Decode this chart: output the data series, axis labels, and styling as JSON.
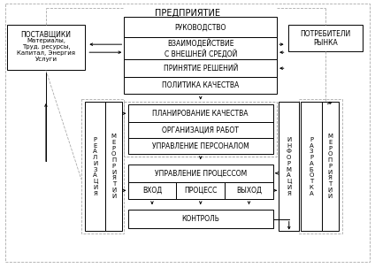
{
  "bg_color": "#ffffff",
  "title": "ПРЕДПРИЯТИЕ",
  "supplier_title": "ПОСТАВЩИКИ",
  "supplier_text": "Материалы,\nТруд. ресурсы,\nКапитал, Энергия\nУслуги",
  "consumer_text": "ПОТРЕБИТЕЛИ\nРЫНКА",
  "box1": "РУКОВОДСТВО",
  "box2": "ВЗАИМОДЕЙСТВИЕ\nС ВНЕШНЕЙ СРЕДОЙ",
  "box3": "ПРИНЯТИЕ РЕШЕНИЙ",
  "box4": "ПОЛИТИКА КАЧЕСТВА",
  "box5": "ПЛАНИРОВАНИЕ КАЧЕСТВА",
  "box6": "ОРГАНИЗАЦИЯ РАБОТ",
  "box7": "УПРАВЛЕНИЕ ПЕРСОНАЛОМ",
  "box8": "УПРАВЛЕНИЕ ПРОЦЕССОМ",
  "box9": "ВХОД",
  "box10": "ПРОЦЕСС",
  "box11": "ВЫХОД",
  "box12": "КОНТРОЛЬ",
  "vert_left1": "Р\nЕ\nА\nЛ\nИ\nЗ\nА\nЦ\nИ\nЯ",
  "vert_left2": "М\nЕ\nР\nО\nП\nР\nИ\nЯ\nТ\nИ\nЙ",
  "vert_right1": "И\nН\nФ\nО\nР\nМ\nА\nЦ\nИ\nЯ",
  "vert_right2": "Р\nА\nЗ\nР\nА\nБ\nО\nТ\nК\nА",
  "vert_right3": "М\nЕ\nР\nО\nП\nР\nИ\nЯ\nТ\nИ\nЙ"
}
